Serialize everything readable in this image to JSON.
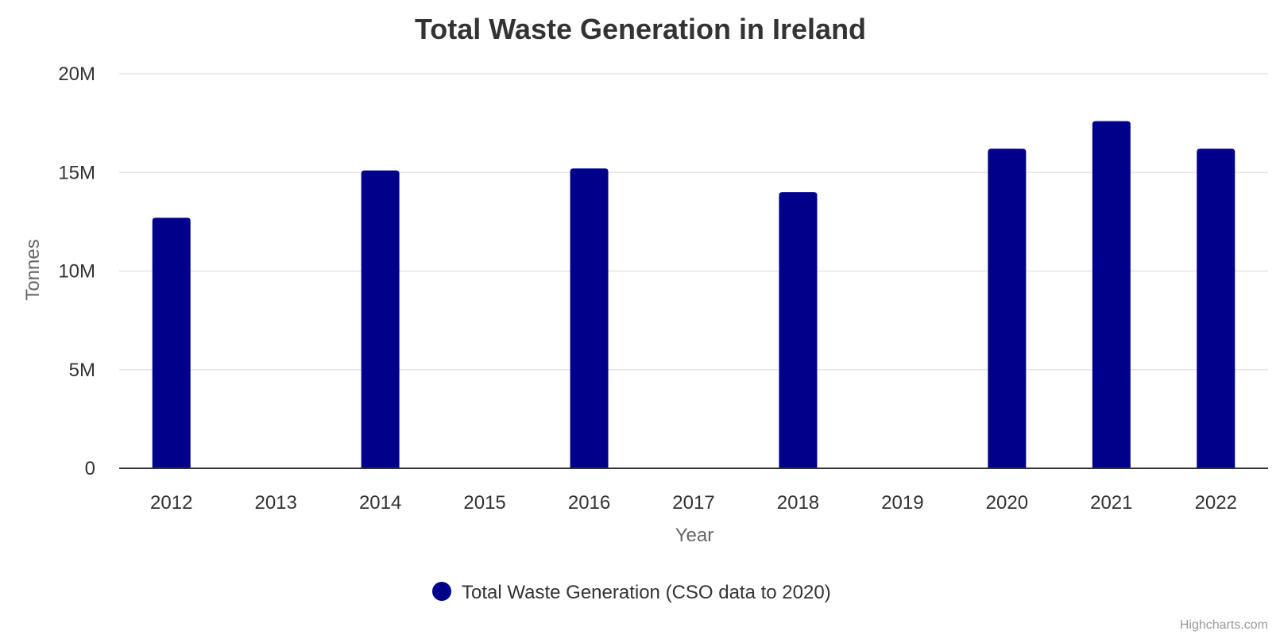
{
  "chart_data": {
    "type": "bar",
    "title": "Total Waste Generation in Ireland",
    "xlabel": "Year",
    "ylabel": "Tonnes",
    "categories": [
      "2012",
      "2013",
      "2014",
      "2015",
      "2016",
      "2017",
      "2018",
      "2019",
      "2020",
      "2021",
      "2022"
    ],
    "series": [
      {
        "name": "Total Waste Generation (CSO data to 2020)",
        "color": "#00008B",
        "values": [
          12700000,
          null,
          15100000,
          null,
          15200000,
          null,
          14000000,
          null,
          16200000,
          17600000,
          16200000
        ]
      }
    ],
    "ylim": [
      0,
      20000000
    ],
    "yticks": [
      {
        "value": 0,
        "label": "0"
      },
      {
        "value": 5000000,
        "label": "5M"
      },
      {
        "value": 10000000,
        "label": "10M"
      },
      {
        "value": 15000000,
        "label": "15M"
      },
      {
        "value": 20000000,
        "label": "20M"
      }
    ],
    "grid": true,
    "legend_position": "bottom-center"
  },
  "credits": "Highcharts.com"
}
